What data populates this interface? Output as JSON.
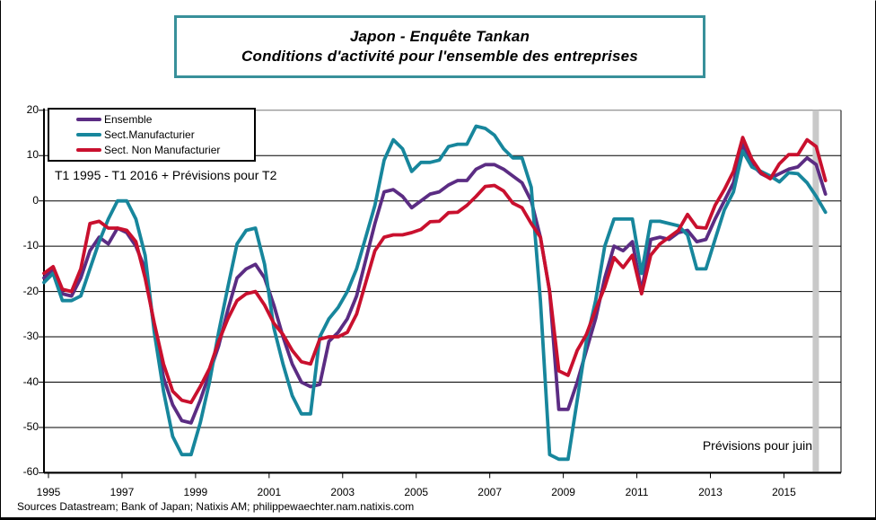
{
  "title": {
    "line1": "Japon - Enquête Tankan",
    "line2": "Conditions d'activité pour l'ensemble des entreprises",
    "border_color": "#38909A"
  },
  "legend": {
    "items": [
      {
        "label": "Ensemble",
        "color": "#5B2C83"
      },
      {
        "label": "Sect.Manufacturier",
        "color": "#17869C"
      },
      {
        "label": "Sect. Non Manufacturier",
        "color": "#C9102E"
      }
    ]
  },
  "annotations": {
    "range_note": "T1 1995 - T1 2016 + Prévisions pour T2",
    "forecast_note": "Prévisions pour juin"
  },
  "footer": {
    "sources": "Sources Datastream; Bank of Japan; Natixis AM; philippewaechter.nam.natixis.com"
  },
  "chart_data": {
    "type": "line",
    "title": "Japon - Enquête Tankan : Conditions d'activité pour l'ensemble des entreprises",
    "x_unit": "quarter",
    "x_start": "1995-T1",
    "x_end": "2016-T1",
    "forecast_point": "2016-T2 (prévision)",
    "x_tick_years": [
      1995,
      1997,
      1999,
      2001,
      2003,
      2005,
      2007,
      2009,
      2011,
      2013,
      2015
    ],
    "ylim": [
      -60,
      20
    ],
    "y_ticks": [
      20,
      10,
      0,
      -10,
      -20,
      -30,
      -40,
      -50,
      -60
    ],
    "grid": true,
    "legend_position": "top-left",
    "forecast_band_color": "#C9C9C9",
    "axis_color": "#000000",
    "top_border_color": "#777777",
    "series": [
      {
        "name": "Ensemble",
        "color": "#5B2C83",
        "values": [
          -17,
          -15,
          -20.5,
          -21,
          -17,
          -11,
          -8,
          -9.5,
          -6,
          -7,
          -10,
          -15,
          -28,
          -39,
          -45,
          -48.5,
          -49,
          -44,
          -38,
          -32,
          -24,
          -17,
          -15,
          -14,
          -17,
          -23,
          -30,
          -36,
          -40,
          -41,
          -40.5,
          -31,
          -29,
          -26,
          -21,
          -13,
          -5,
          2,
          2.5,
          1,
          -1.5,
          0,
          1.5,
          2,
          3.5,
          4.5,
          4.5,
          7,
          8,
          8,
          7,
          5.5,
          4,
          0,
          -8,
          -20,
          -46,
          -46,
          -40,
          -33,
          -26,
          -17,
          -10,
          -11,
          -9,
          -20,
          -8.5,
          -8,
          -8.5,
          -7,
          -6.5,
          -9,
          -8.5,
          -4,
          0,
          4,
          12.5,
          8,
          6,
          5,
          6,
          7,
          7.5,
          9.5,
          8,
          1.5
        ]
      },
      {
        "name": "Sect.Manufacturier",
        "color": "#17869C",
        "values": [
          -18,
          -16,
          -22,
          -22,
          -21,
          -15,
          -9,
          -4,
          0,
          0,
          -4,
          -12,
          -29,
          -42,
          -52,
          -56,
          -56,
          -49,
          -40,
          -29,
          -19,
          -9.5,
          -6.5,
          -6,
          -14,
          -28,
          -36,
          -43,
          -47,
          -47,
          -30,
          -26,
          -23.5,
          -20,
          -15,
          -8,
          -1,
          9,
          13.5,
          11.5,
          6.5,
          8.5,
          8.5,
          9,
          12,
          12.5,
          12.5,
          16.5,
          16,
          14.5,
          11.5,
          9.5,
          9.5,
          3,
          -22,
          -56,
          -57,
          -57,
          -44,
          -31,
          -22,
          -10,
          -4,
          -4,
          -4,
          -16,
          -4.5,
          -4.5,
          -5,
          -5.5,
          -7.5,
          -15,
          -15,
          -8.5,
          -2,
          2,
          11,
          7.5,
          6.5,
          5.5,
          4.2,
          6.2,
          6,
          4,
          1,
          -2.5
        ]
      },
      {
        "name": "Sect. Non Manufacturier",
        "color": "#C9102E",
        "values": [
          -16,
          -14.5,
          -19.5,
          -20,
          -15,
          -5,
          -4.5,
          -6,
          -6,
          -6.5,
          -9,
          -17,
          -27,
          -36,
          -42,
          -44,
          -44.5,
          -41,
          -37,
          -31,
          -26,
          -22,
          -20.5,
          -20,
          -23,
          -27,
          -29.5,
          -33,
          -35.5,
          -36,
          -30.5,
          -30,
          -30,
          -29,
          -25,
          -18,
          -11,
          -8,
          -7.5,
          -7.5,
          -7,
          -6.3,
          -4.6,
          -4.5,
          -2.6,
          -2.5,
          -1,
          1,
          3.2,
          3.4,
          2.2,
          -0.5,
          -1.5,
          -5,
          -8,
          -20,
          -37.5,
          -38.5,
          -33,
          -29.5,
          -24,
          -19,
          -12.5,
          -14.7,
          -12,
          -20.5,
          -12,
          -9.5,
          -8,
          -6.5,
          -3,
          -5.8,
          -6,
          -1,
          2.5,
          6.5,
          14,
          9.2,
          6.2,
          4.9,
          8.2,
          10.2,
          10.2,
          13.5,
          12,
          4.5
        ]
      }
    ]
  }
}
